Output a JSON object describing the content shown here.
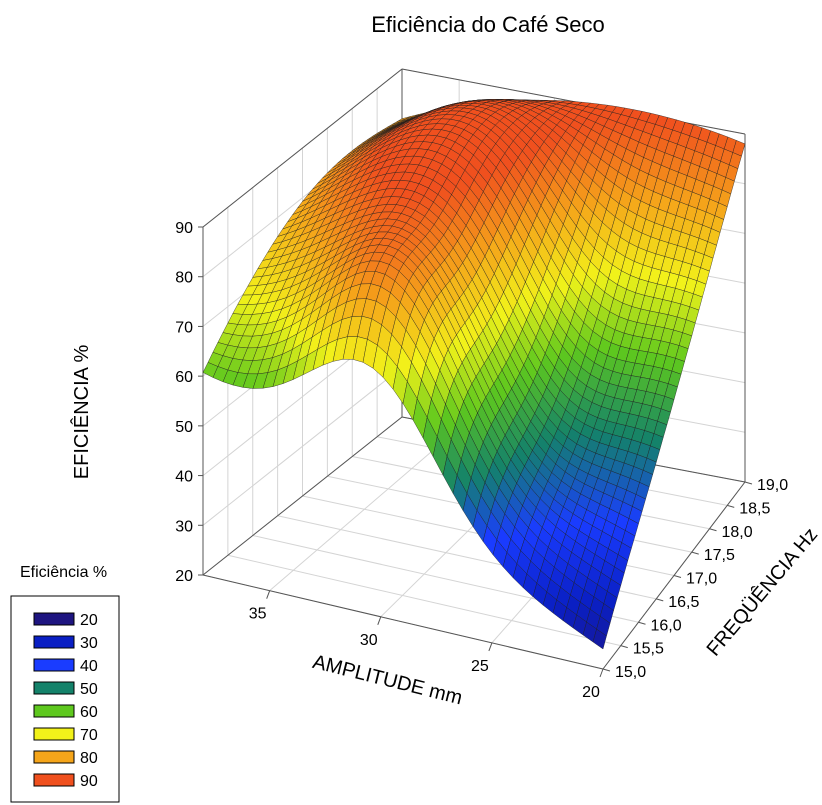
{
  "chart_data": {
    "type": "surface3d",
    "title": "Eficiência do Café Seco",
    "xlabel": "AMPLITUDE mm",
    "ylabel": "FREQÜÊNCIA Hz",
    "zlabel": "EFICIÊNCIA %",
    "x_ticks": [
      "20",
      "25",
      "30",
      "35"
    ],
    "x_range": [
      20,
      38
    ],
    "y_ticks": [
      "15,0",
      "15,5",
      "16,0",
      "16,5",
      "17,0",
      "17,5",
      "18,0",
      "18,5",
      "19,0"
    ],
    "y_range": [
      15,
      19
    ],
    "z_ticks": [
      "20",
      "30",
      "40",
      "50",
      "60",
      "70",
      "80",
      "90"
    ],
    "z_range": [
      20,
      90
    ],
    "grid": true,
    "corner_values": [
      {
        "amplitude": 38,
        "frequency": 15,
        "efficiency": 60
      },
      {
        "amplitude": 20,
        "frequency": 15,
        "efficiency": 24
      },
      {
        "amplitude": 20,
        "frequency": 19,
        "efficiency": 88
      },
      {
        "amplitude": 38,
        "frequency": 19,
        "efficiency": 80
      }
    ],
    "legend": {
      "title": "Eficiência %",
      "placement": "bottom-left",
      "entries": [
        {
          "label": "20",
          "color": "#1e1580"
        },
        {
          "label": "30",
          "color": "#0a1fc4"
        },
        {
          "label": "40",
          "color": "#1a3cff"
        },
        {
          "label": "50",
          "color": "#14826a"
        },
        {
          "label": "60",
          "color": "#5ec81e"
        },
        {
          "label": "70",
          "color": "#f2f21a"
        },
        {
          "label": "80",
          "color": "#f5a51a"
        },
        {
          "label": "90",
          "color": "#f0501e"
        }
      ]
    }
  }
}
